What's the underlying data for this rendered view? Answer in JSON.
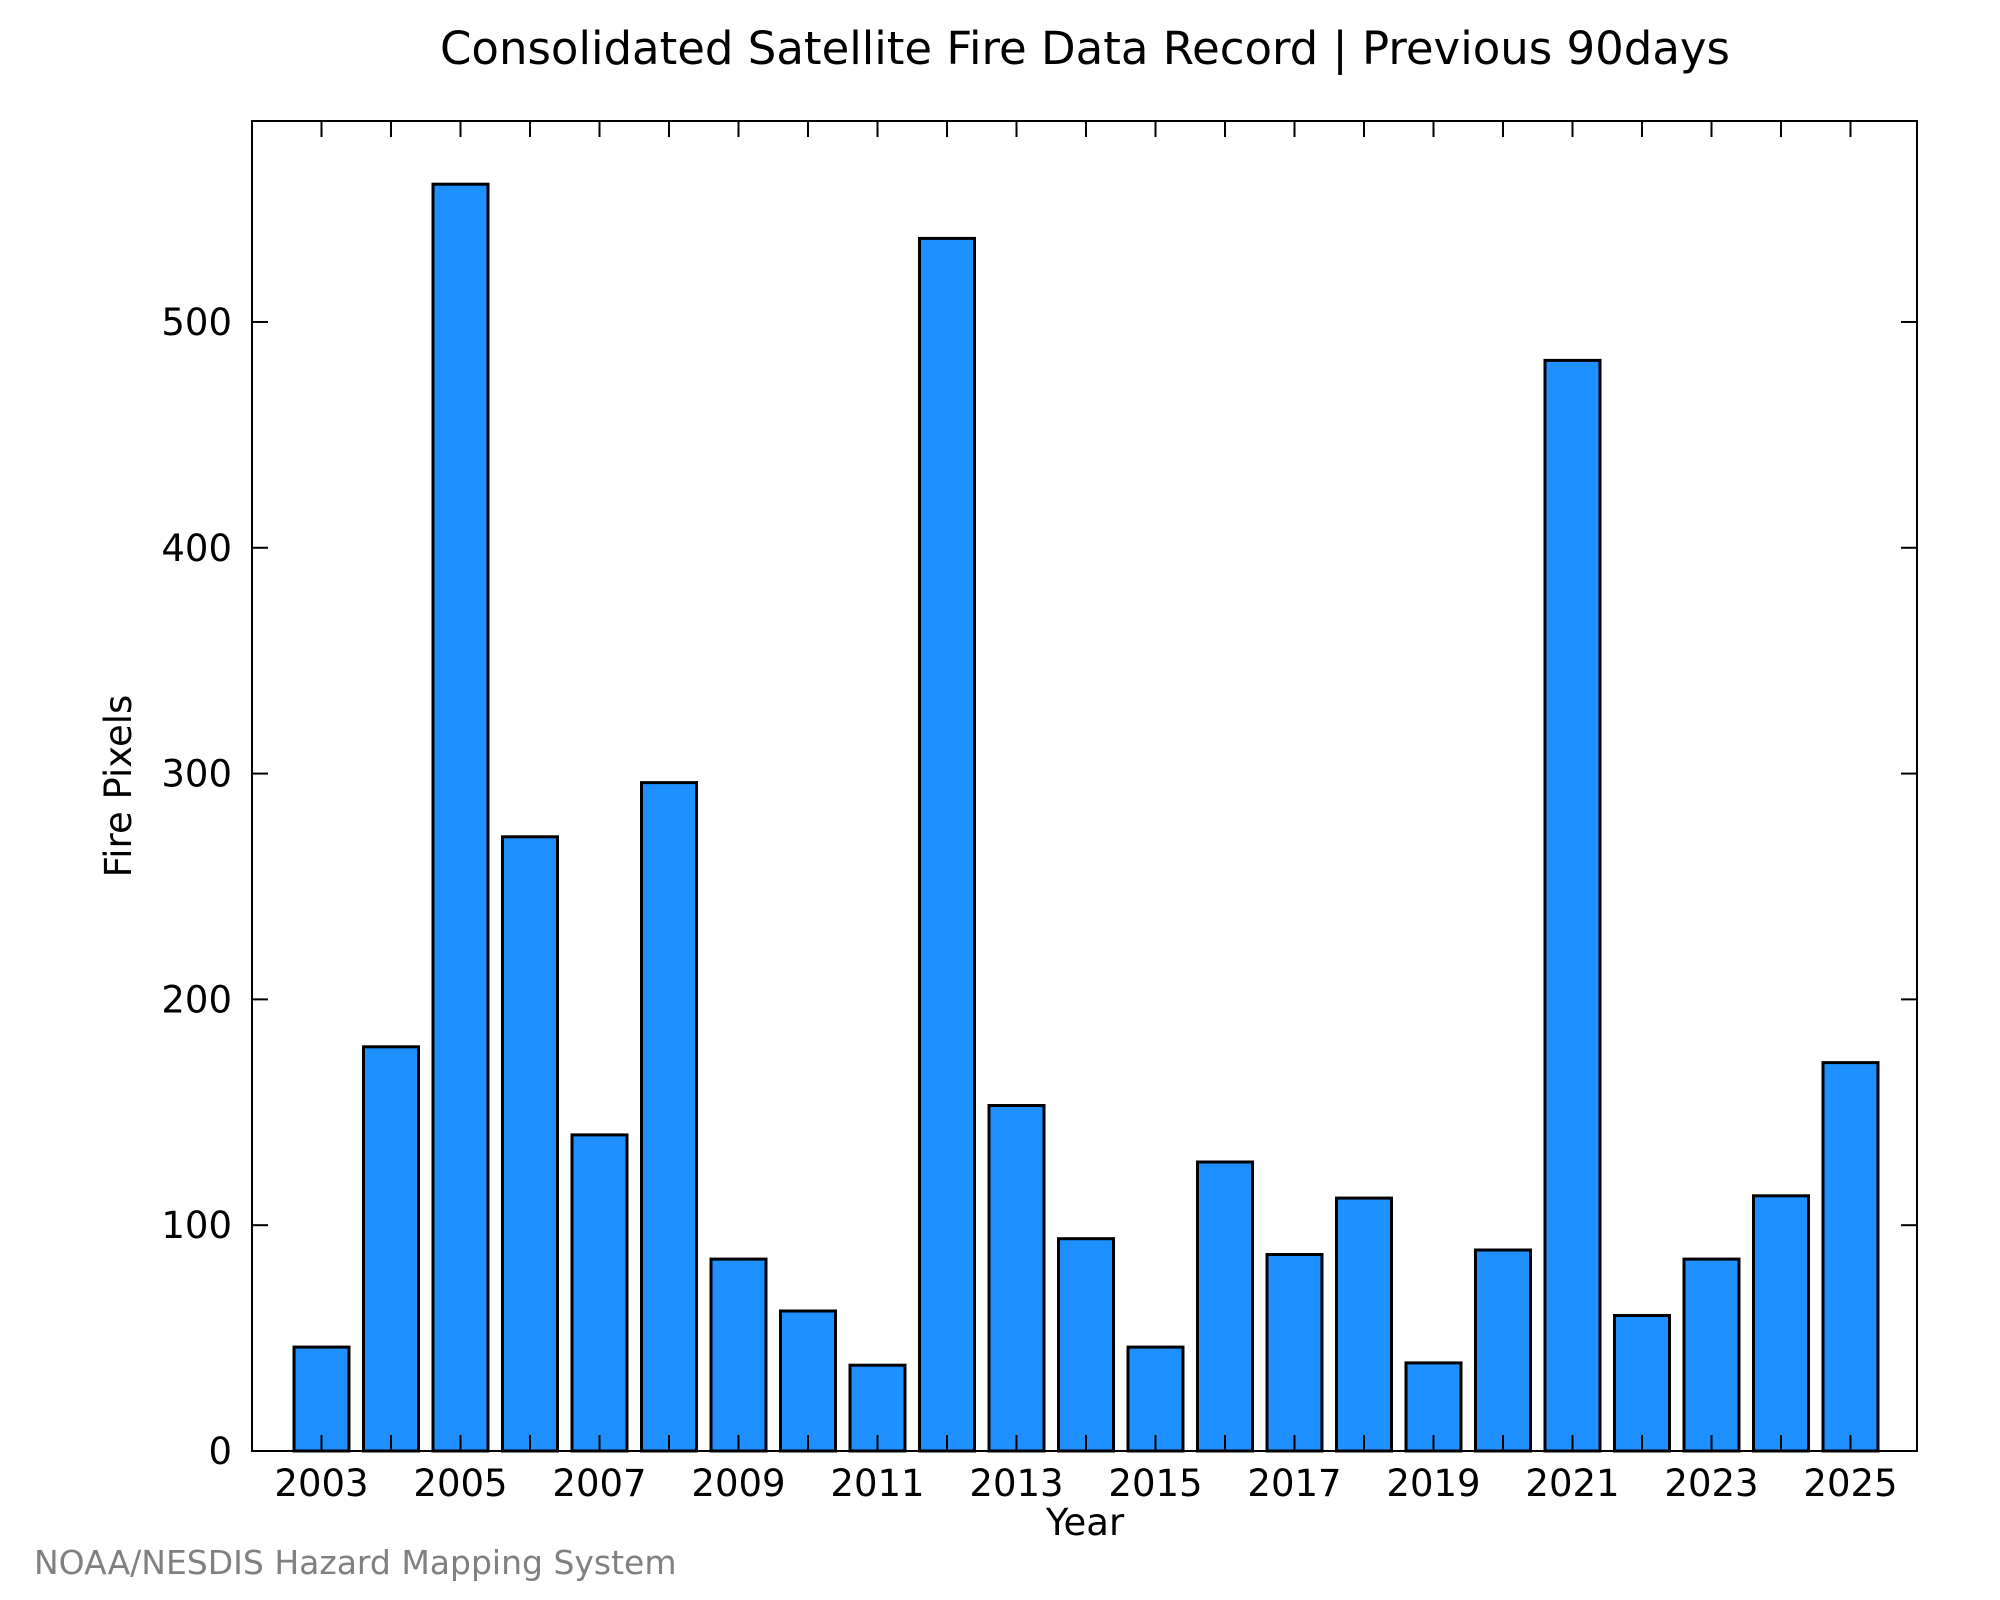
{
  "chart_data": {
    "type": "bar",
    "title": "Consolidated Satellite Fire Data Record | Previous 90days",
    "xlabel": "Year",
    "ylabel": "Fire Pixels",
    "categories": [
      "2003",
      "2004",
      "2005",
      "2006",
      "2007",
      "2008",
      "2009",
      "2010",
      "2011",
      "2012",
      "2013",
      "2014",
      "2015",
      "2016",
      "2017",
      "2018",
      "2019",
      "2020",
      "2021",
      "2022",
      "2023",
      "2024",
      "2025"
    ],
    "values": [
      46,
      179,
      561,
      272,
      140,
      296,
      85,
      62,
      38,
      537,
      153,
      94,
      46,
      128,
      87,
      112,
      39,
      89,
      483,
      60,
      85,
      113,
      172
    ],
    "x_tick_labels": [
      "2003",
      "2005",
      "2007",
      "2009",
      "2011",
      "2013",
      "2015",
      "2017",
      "2019",
      "2021",
      "2023",
      "2025"
    ],
    "y_ticks": [
      0,
      100,
      200,
      300,
      400,
      500
    ],
    "ylim": [
      0,
      589
    ],
    "bar_color": "#1e90ff",
    "grid": false,
    "legend": "none"
  },
  "credit": "NOAA/NESDIS Hazard Mapping System"
}
